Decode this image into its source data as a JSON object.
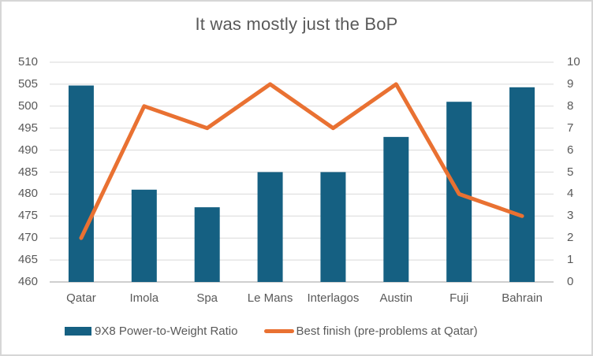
{
  "chart_data": {
    "type": "combo",
    "title": "It was mostly just the BoP",
    "categories": [
      "Qatar",
      "Imola",
      "Spa",
      "Le Mans",
      "Interlagos",
      "Austin",
      "Fuji",
      "Bahrain"
    ],
    "series": [
      {
        "name": "9X8 Power-to-Weight Ratio",
        "type": "bar",
        "axis": "left",
        "color": "#156082",
        "values": [
          504.7,
          481,
          477,
          485,
          485,
          493,
          501,
          504.3
        ]
      },
      {
        "name": "Best finish (pre-problems at Qatar)",
        "type": "line",
        "axis": "right",
        "color": "#E97132",
        "values": [
          2,
          8,
          7,
          9,
          7,
          9,
          4,
          3
        ]
      }
    ],
    "left_axis": {
      "min": 460,
      "max": 510,
      "step": 5,
      "tick_labels": [
        "510",
        "505",
        "500",
        "495",
        "490",
        "485",
        "480",
        "475",
        "470",
        "465",
        "460"
      ]
    },
    "right_axis": {
      "min": 0,
      "max": 10,
      "step": 1,
      "tick_labels": [
        "10",
        "9",
        "8",
        "7",
        "6",
        "5",
        "4",
        "3",
        "2",
        "1",
        "0"
      ]
    },
    "grid": true,
    "legend_position": "bottom"
  },
  "colors": {
    "bar": "#156082",
    "line": "#E97132",
    "text": "#595959",
    "gridline": "#d9d9d9",
    "axis_line": "#bfbfbf",
    "frame_border": "#d6d6d6",
    "background": "#ffffff"
  }
}
